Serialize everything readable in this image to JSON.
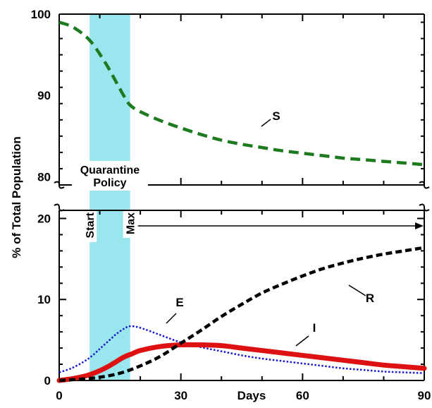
{
  "chart_data": {
    "type": "line",
    "xlabel": "Days",
    "ylabel": "% of Total Population",
    "x_ticks": [
      0,
      30,
      60,
      90
    ],
    "x_range": [
      0,
      90
    ],
    "upper_panel": {
      "y_range": [
        79,
        100
      ],
      "y_ticks": [
        80,
        90,
        100
      ]
    },
    "lower_panel": {
      "y_range": [
        0,
        21
      ],
      "y_ticks": [
        0,
        10,
        20
      ]
    },
    "colors": {
      "S": "#1e7a1e",
      "E": "#1a1acc",
      "I": "#dd1111",
      "R": "#000000",
      "policy_band": "#99e6ee"
    },
    "annotations": {
      "policy_title_line1": "Quarantine",
      "policy_title_line2": "Policy",
      "start_label": "Start",
      "max_label": "Max",
      "policy_start_day": 7.5,
      "policy_max_day": 17.5
    },
    "series": [
      {
        "name": "S",
        "panel": "upper",
        "style": "dashed",
        "x": [
          0,
          3,
          6,
          8,
          10,
          12,
          14,
          16,
          17.5,
          20,
          25,
          30,
          35,
          40,
          45,
          50,
          55,
          60,
          65,
          70,
          75,
          80,
          85,
          90
        ],
        "values": [
          99,
          98.5,
          97.5,
          96.5,
          95.1,
          93.5,
          91.7,
          89.9,
          88.8,
          88.0,
          86.9,
          86.0,
          85.2,
          84.5,
          84.0,
          83.6,
          83.2,
          82.9,
          82.6,
          82.3,
          82.1,
          81.9,
          81.7,
          81.5
        ]
      },
      {
        "name": "E",
        "panel": "lower",
        "style": "dotted",
        "x": [
          0,
          3,
          6,
          8,
          10,
          12,
          14,
          16,
          17.5,
          20,
          25,
          30,
          35,
          40,
          45,
          50,
          55,
          60,
          65,
          70,
          75,
          80,
          85,
          90
        ],
        "values": [
          1.0,
          1.5,
          2.3,
          3.0,
          3.9,
          4.8,
          5.7,
          6.4,
          6.7,
          6.5,
          5.6,
          4.7,
          4.1,
          3.6,
          3.1,
          2.7,
          2.4,
          2.1,
          1.8,
          1.5,
          1.3,
          1.1,
          1.0,
          0.9
        ]
      },
      {
        "name": "I",
        "panel": "lower",
        "style": "solid",
        "x": [
          0,
          3,
          6,
          8,
          10,
          12,
          14,
          16,
          18,
          20,
          25,
          30,
          35,
          40,
          45,
          50,
          55,
          60,
          65,
          70,
          75,
          80,
          85,
          90
        ],
        "values": [
          0,
          0.2,
          0.5,
          0.8,
          1.2,
          1.7,
          2.3,
          2.9,
          3.3,
          3.7,
          4.2,
          4.4,
          4.4,
          4.3,
          4.0,
          3.7,
          3.4,
          3.1,
          2.8,
          2.5,
          2.2,
          1.9,
          1.7,
          1.5
        ]
      },
      {
        "name": "R",
        "panel": "lower",
        "style": "dashed",
        "x": [
          0,
          5,
          10,
          15,
          20,
          25,
          30,
          35,
          40,
          45,
          50,
          55,
          60,
          65,
          70,
          75,
          80,
          85,
          90
        ],
        "values": [
          0,
          0.15,
          0.4,
          0.9,
          1.8,
          3.0,
          4.6,
          6.2,
          7.9,
          9.4,
          10.8,
          11.9,
          12.9,
          13.8,
          14.5,
          15.1,
          15.6,
          16.0,
          16.4
        ]
      }
    ]
  }
}
